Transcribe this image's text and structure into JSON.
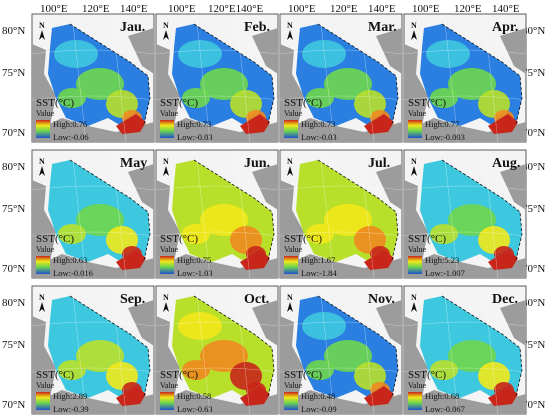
{
  "axis_labels": {
    "top": [
      "100°E",
      "120°E",
      "140°E"
    ],
    "top_split": [
      "100°E",
      "120°E140°E"
    ],
    "lat": [
      "80°N",
      "75°N",
      "70°N"
    ]
  },
  "north_arrow": "N",
  "legend": {
    "title": "SST(°C)",
    "subtitle": "Value",
    "high_prefix": "High:",
    "low_prefix": "Low:"
  },
  "colors": {
    "ocean_low": "#1e50d0",
    "ocean_mid": "#3ec8e0",
    "ocean_green": "#6ed64c",
    "ocean_yellow": "#f2e81a",
    "ocean_orange": "#f08a1e",
    "ocean_high": "#c8261a",
    "land": "#9c9c9c",
    "panel_bg": "#f4f4f4"
  },
  "panels": [
    {
      "month": "Jau.",
      "high": "0.76",
      "low": "-0.06",
      "level": 0.3
    },
    {
      "month": "Feb.",
      "high": "0.73",
      "low": "-0.03",
      "level": 0.3
    },
    {
      "month": "Mar.",
      "high": "0.73",
      "low": "-0.03",
      "level": 0.3
    },
    {
      "month": "Apr.",
      "high": "0.77",
      "low": "-0.003",
      "level": 0.3
    },
    {
      "month": "May",
      "high": "0.63",
      "low": "-0.016",
      "level": 0.4
    },
    {
      "month": "Jun.",
      "high": "0.75",
      "low": "-1.03",
      "level": 0.62
    },
    {
      "month": "Jul.",
      "high": "1.67",
      "low": "-1.84",
      "level": 0.62
    },
    {
      "month": "Aug.",
      "high": "5.23",
      "low": "-1.007",
      "level": 0.38
    },
    {
      "month": "Sep.",
      "high": "2.89",
      "low": "-0.39",
      "level": 0.42
    },
    {
      "month": "Oct.",
      "high": "0.58",
      "low": "-0.63",
      "level": 0.72
    },
    {
      "month": "Nov.",
      "high": "0.48",
      "low": "-0.09",
      "level": 0.35
    },
    {
      "month": "Dec.",
      "high": "0.68",
      "low": "-0.067",
      "level": 0.38
    }
  ]
}
